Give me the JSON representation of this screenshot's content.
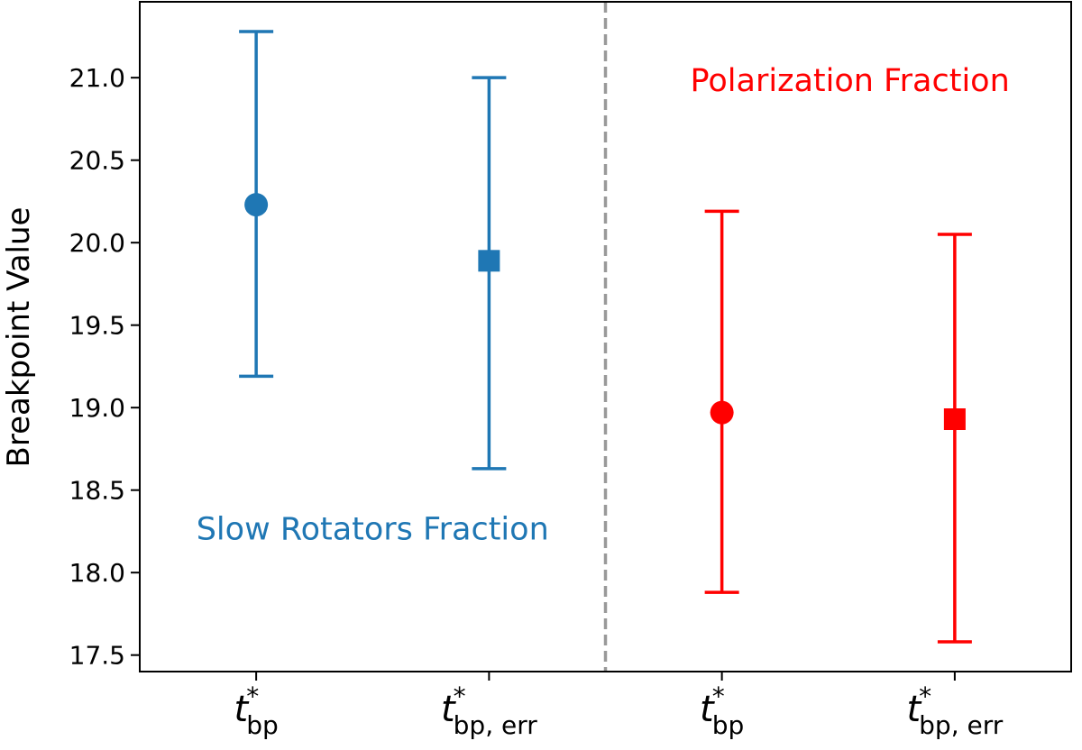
{
  "chart_data": {
    "type": "scatter",
    "title": "",
    "xlabel": "",
    "ylabel": "Breakpoint Value",
    "xlim": [
      -0.5,
      3.5
    ],
    "ylim": [
      17.4,
      21.46
    ],
    "grid": false,
    "yticks": [
      "17.5",
      "18.0",
      "18.5",
      "19.0",
      "19.5",
      "20.0",
      "20.5",
      "21.0"
    ],
    "xticks": [
      {
        "base": "t",
        "sup": "*",
        "sub": "bp"
      },
      {
        "base": "t",
        "sup": "*",
        "sub": "bp, err"
      },
      {
        "base": "t",
        "sup": "*",
        "sub": "bp"
      },
      {
        "base": "t",
        "sup": "*",
        "sub": "bp, err"
      }
    ],
    "divider": {
      "x": 1.5,
      "style": "dashed",
      "color": "#999999"
    },
    "points": [
      {
        "x": 0,
        "y": 20.23,
        "lower": 19.19,
        "upper": 21.28,
        "marker": "circle",
        "color": "#1f77b4"
      },
      {
        "x": 1,
        "y": 19.89,
        "lower": 18.63,
        "upper": 21.0,
        "marker": "square",
        "color": "#1f77b4"
      },
      {
        "x": 2,
        "y": 18.97,
        "lower": 17.88,
        "upper": 20.19,
        "marker": "circle",
        "color": "#ff0000"
      },
      {
        "x": 3,
        "y": 18.93,
        "lower": 17.58,
        "upper": 20.05,
        "marker": "square",
        "color": "#ff0000"
      }
    ],
    "annotations": [
      {
        "text": "Slow Rotators Fraction",
        "x": 0.5,
        "y": 18.2,
        "color": "#1f77b4"
      },
      {
        "text": "Polarization Fraction",
        "x": 2.55,
        "y": 20.92,
        "color": "#ff0000"
      }
    ]
  }
}
